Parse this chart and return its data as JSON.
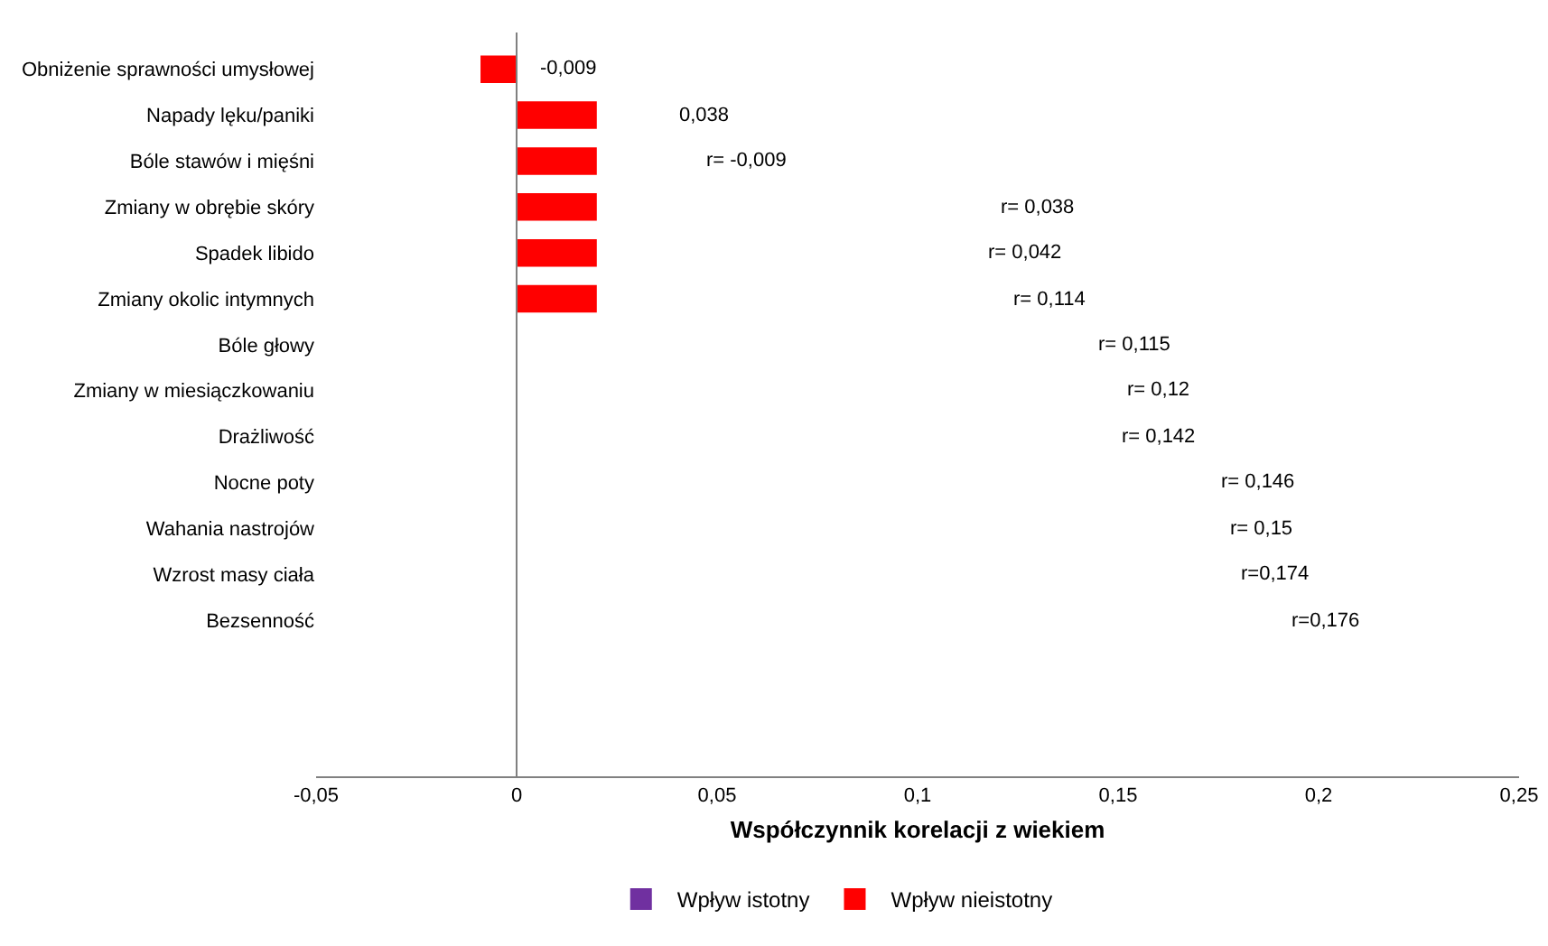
{
  "chart_data": {
    "type": "bar",
    "orientation": "horizontal",
    "xlabel": "Współczynnik korelacji z wiekiem",
    "categories": [
      "Obniżenie sprawności umysłowej",
      "Napady lęku/paniki",
      "Bóle stawów i mięśni",
      "Zmiany w obrębie skóry",
      "Spadek libido",
      "Zmiany okolic intymnych",
      "Bóle głowy",
      "Zmiany w miesiączkowaniu",
      "Drażliwość",
      "Nocne poty",
      "Wahania nastrojów",
      "Wzrost masy ciała",
      "Bezsenność"
    ],
    "series": [
      {
        "name": "Wpływ istotny",
        "color": "#7030a0",
        "values": [
          null,
          null,
          null,
          null,
          null,
          null,
          null,
          null,
          null,
          null,
          null,
          null,
          null
        ]
      },
      {
        "name": "Wpływ nieistotny",
        "color": "#ff0000",
        "values": [
          -0.009,
          0.02,
          0.02,
          0.02,
          0.02,
          0.02,
          null,
          null,
          null,
          null,
          null,
          null,
          null
        ]
      }
    ],
    "xlim": [
      -0.05,
      0.25
    ],
    "xticks": [
      {
        "value": -0.05,
        "label": "-0,05"
      },
      0,
      {
        "value": 0.05,
        "label": "0,05"
      },
      {
        "value": 0.1,
        "label": "0,1"
      },
      {
        "value": 0.15,
        "label": "0,15"
      },
      {
        "value": 0.2,
        "label": "0,2"
      },
      {
        "value": 0.25,
        "label": "0,25"
      }
    ],
    "annotations": [
      "-0,009",
      "0,038",
      "r= -0,009",
      "r= 0,038",
      "r= 0,042",
      "r= 0,114",
      "r= 0,115",
      "r= 0,12",
      "r= 0,142",
      "r= 0,146",
      "r= 0,15",
      "r=0,174",
      "r=0,176"
    ],
    "ref_lines": [
      {
        "axis": "x",
        "value": 0,
        "color": "#808080"
      }
    ],
    "legend": "bottom"
  }
}
